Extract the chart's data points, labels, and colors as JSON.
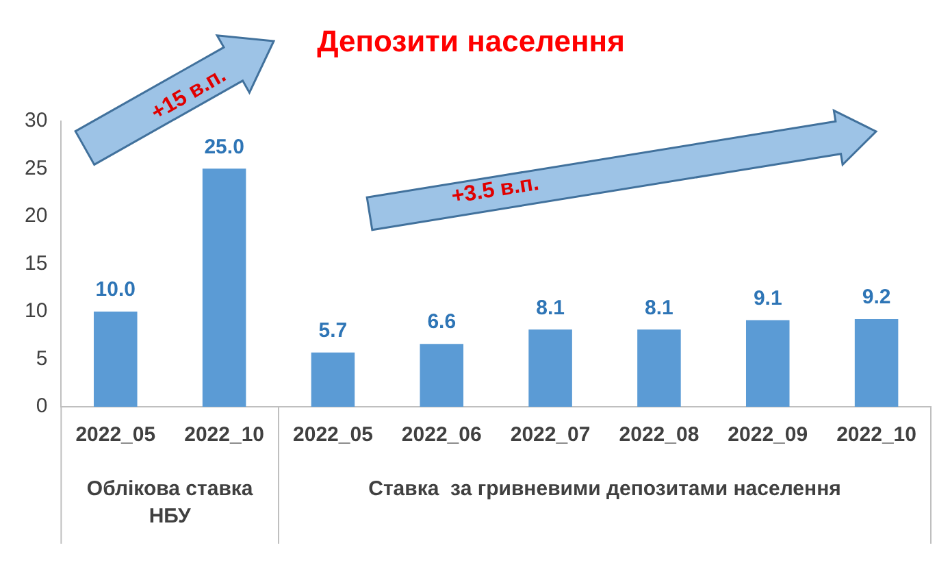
{
  "chart_data": {
    "type": "bar",
    "title": "Депозити населення",
    "categories": [
      "2022_05",
      "2022_10",
      "2022_05",
      "2022_06",
      "2022_07",
      "2022_08",
      "2022_09",
      "2022_10"
    ],
    "values": [
      10.0,
      25.0,
      5.7,
      6.6,
      8.1,
      8.1,
      9.1,
      9.2
    ],
    "value_labels": [
      "10.0",
      "25.0",
      "5.7",
      "6.6",
      "8.1",
      "8.1",
      "9.1",
      "9.2"
    ],
    "color": "#5b9bd5",
    "ylim": [
      0,
      30
    ],
    "yticks": [
      0,
      5,
      10,
      15,
      20,
      25,
      30
    ],
    "grid": false,
    "legend": false,
    "annotations": [
      "Облікова ставка НБУ",
      "Ставка  за гривневими депозитами населення",
      "+15 в.п.",
      "+3.5 в.п."
    ]
  }
}
